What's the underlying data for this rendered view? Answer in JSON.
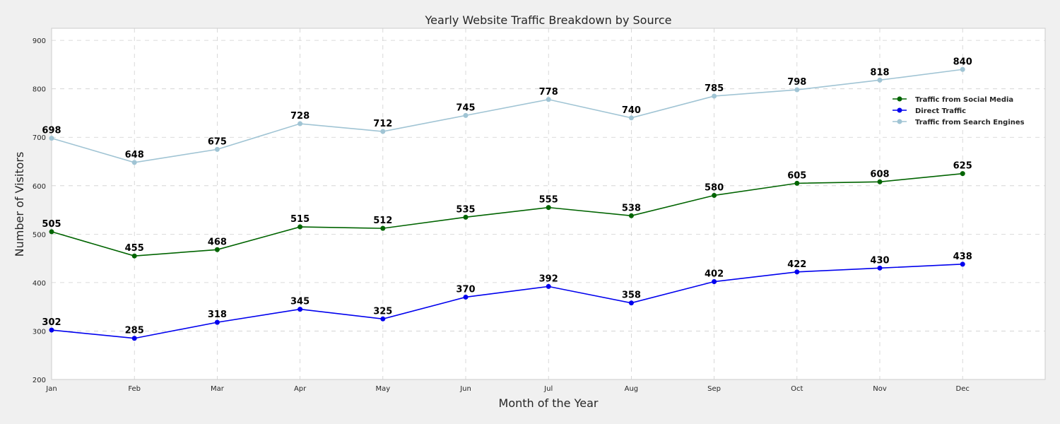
{
  "chart_data": {
    "type": "line",
    "title": "Yearly Website Traffic Breakdown by Source",
    "xlabel": "Month of the Year",
    "ylabel": "Number of Visitors",
    "categories": [
      "Jan",
      "Feb",
      "Mar",
      "Apr",
      "May",
      "Jun",
      "Jul",
      "Aug",
      "Sep",
      "Oct",
      "Nov",
      "Dec"
    ],
    "xlim": [
      0,
      12
    ],
    "ylim": [
      200,
      925
    ],
    "yticks": [
      200,
      300,
      400,
      500,
      600,
      700,
      800,
      900
    ],
    "grid": true,
    "legend_position": "upper-right",
    "series": [
      {
        "name": "Traffic from Social Media",
        "color": "#006400",
        "values": [
          505,
          455,
          468,
          515,
          512,
          535,
          555,
          538,
          580,
          605,
          608,
          625
        ]
      },
      {
        "name": "Direct Traffic",
        "color": "#0000ee",
        "values": [
          302,
          285,
          318,
          345,
          325,
          370,
          392,
          358,
          402,
          422,
          430,
          438
        ]
      },
      {
        "name": "Traffic from Search Engines",
        "color": "#a0c4d4",
        "values": [
          698,
          648,
          675,
          728,
          712,
          745,
          778,
          740,
          785,
          798,
          818,
          840
        ]
      }
    ]
  }
}
